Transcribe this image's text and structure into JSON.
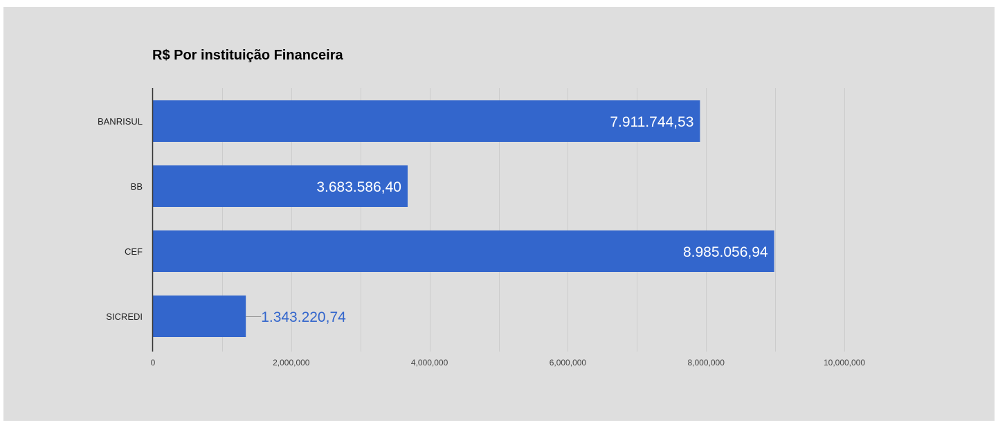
{
  "chart_data": {
    "type": "bar",
    "orientation": "horizontal",
    "title": "R$ Por instituição Financeira",
    "categories": [
      "BANRISUL",
      "BB",
      "CEF",
      "SICREDI"
    ],
    "values": [
      7911744.53,
      3683586.4,
      8985056.94,
      1343220.74
    ],
    "value_labels": [
      "7.911.744,53",
      "3.683.586,40",
      "8.985.056,94",
      "1.343.220,74"
    ],
    "xlim": [
      0,
      10000000
    ],
    "x_ticks": [
      0,
      2000000,
      4000000,
      6000000,
      8000000,
      10000000
    ],
    "x_tick_labels": [
      "0",
      "2,000,000",
      "4,000,000",
      "6,000,000",
      "8,000,000",
      "10,000,000"
    ],
    "xlabel": "",
    "ylabel": "",
    "grid": true,
    "legend": "none"
  },
  "colors": {
    "background": "#dedede",
    "bar": "#3366cc",
    "gridline": "#cccccc",
    "axis": "#333333",
    "outside_label": "#3366cc",
    "leader_line": "#999999"
  }
}
